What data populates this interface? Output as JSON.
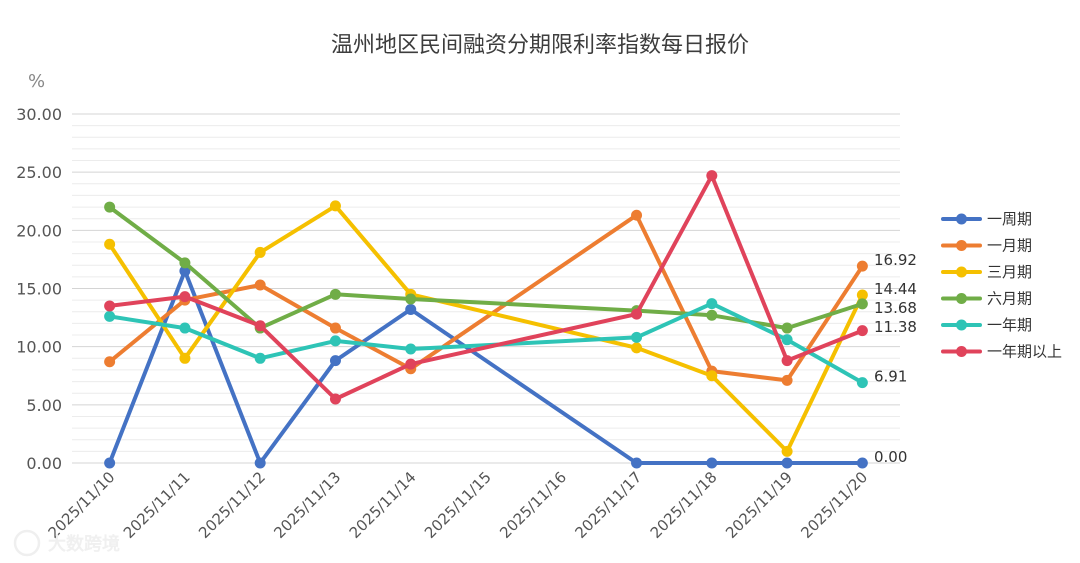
{
  "chart_data": {
    "type": "line",
    "title": "温州地区民间融资分期限利率指数每日报价",
    "ylabel": "%",
    "xlabel": "",
    "ylim": [
      0,
      30
    ],
    "ytick_labels": [
      "0.00",
      "5.00",
      "10.00",
      "15.00",
      "20.00",
      "25.00",
      "30.00"
    ],
    "grid": true,
    "legend_position": "right",
    "categories": [
      "2025/11/10",
      "2025/11/11",
      "2025/11/12",
      "2025/11/13",
      "2025/11/14",
      "2025/11/15",
      "2025/11/16",
      "2025/11/17",
      "2025/11/18",
      "2025/11/19",
      "2025/11/20"
    ],
    "series": [
      {
        "name": "一周期",
        "color": "#4472c4",
        "values": [
          0.0,
          16.5,
          0.0,
          8.8,
          13.2,
          null,
          null,
          0.0,
          0.0,
          0.0,
          0.0
        ],
        "end_label": "0.00"
      },
      {
        "name": "一月期",
        "color": "#ed7d31",
        "values": [
          8.7,
          14.0,
          15.3,
          11.6,
          8.1,
          null,
          null,
          21.3,
          7.9,
          7.1,
          16.92
        ],
        "end_label": "16.92"
      },
      {
        "name": "三月期",
        "color": "#f5c000",
        "values": [
          18.8,
          9.0,
          18.1,
          22.1,
          14.5,
          null,
          null,
          9.9,
          7.5,
          1.0,
          14.44
        ],
        "end_label": "14.44"
      },
      {
        "name": "六月期",
        "color": "#70ad47",
        "values": [
          22.0,
          17.2,
          11.6,
          14.5,
          14.1,
          null,
          null,
          13.1,
          12.7,
          11.6,
          13.68
        ],
        "end_label": "13.68"
      },
      {
        "name": "一年期",
        "color": "#2ec4b6",
        "values": [
          12.6,
          11.6,
          9.0,
          10.5,
          9.8,
          null,
          null,
          10.8,
          13.7,
          10.6,
          6.91
        ],
        "end_label": "6.91"
      },
      {
        "name": "一年期以上",
        "color": "#e0435b",
        "values": [
          13.5,
          14.3,
          11.8,
          5.5,
          8.5,
          null,
          null,
          12.8,
          24.7,
          8.8,
          11.38
        ],
        "end_label": "11.38"
      }
    ]
  },
  "watermark": "大数跨境"
}
